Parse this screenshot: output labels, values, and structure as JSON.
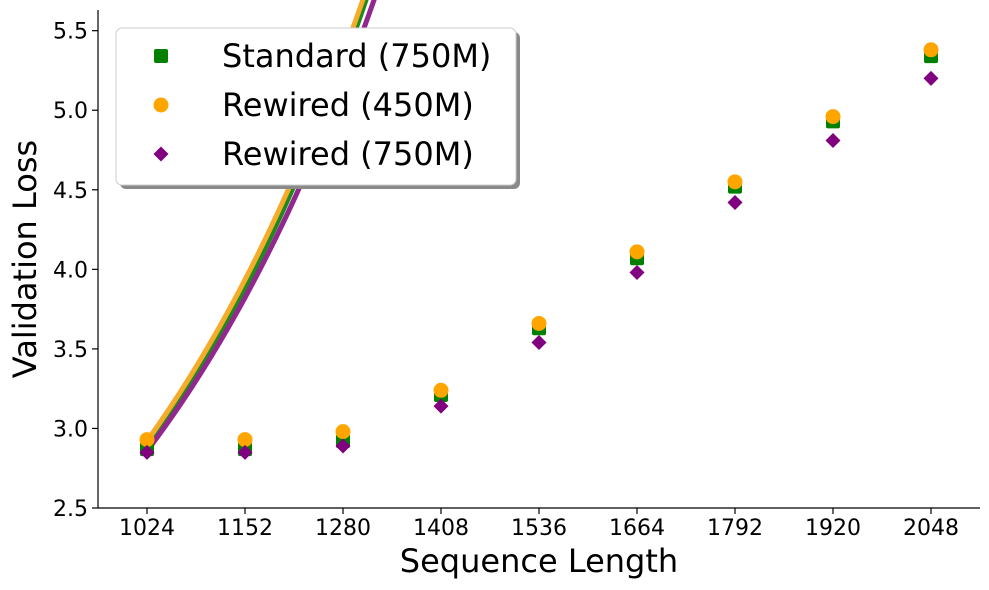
{
  "chart_data": {
    "type": "scatter",
    "xlabel": "Sequence Length",
    "ylabel": "Validation Loss",
    "x": [
      1024,
      1152,
      1280,
      1408,
      1536,
      1664,
      1792,
      1920,
      2048
    ],
    "xticks": [
      "1024",
      "1152",
      "1280",
      "1408",
      "1536",
      "1664",
      "1792",
      "1920",
      "2048"
    ],
    "yticks": [
      "2.5",
      "3.0",
      "3.5",
      "4.0",
      "4.5",
      "5.0",
      "5.5"
    ],
    "ylim": [
      2.5,
      5.63
    ],
    "xlim": [
      960,
      2112
    ],
    "grid": false,
    "legend_placement": "top-left",
    "series": [
      {
        "name": "Standard (750M)",
        "marker": "square",
        "color": "#008000",
        "fit_color": "#1e8a1e",
        "values": [
          2.87,
          2.87,
          2.92,
          3.21,
          3.63,
          4.07,
          4.52,
          4.93,
          5.34
        ],
        "fit": {
          "a": 2.867,
          "b": 2.573,
          "k": 0.002591
        }
      },
      {
        "name": "Rewired (450M)",
        "marker": "circle",
        "color": "#ffa500",
        "fit_color": "#f6ab2a",
        "values": [
          2.93,
          2.93,
          2.98,
          3.24,
          3.66,
          4.11,
          4.55,
          4.96,
          5.38
        ],
        "fit": {
          "a": 2.922,
          "b": 2.576,
          "k": 0.002591
        }
      },
      {
        "name": "Rewired (750M)",
        "marker": "diamond",
        "color": "#800080",
        "fit_color": "#92278f",
        "values": [
          2.85,
          2.85,
          2.89,
          3.14,
          3.54,
          3.98,
          4.42,
          4.81,
          5.2
        ],
        "fit": {
          "a": 2.858,
          "b": 2.452,
          "k": 0.002591
        }
      }
    ]
  }
}
